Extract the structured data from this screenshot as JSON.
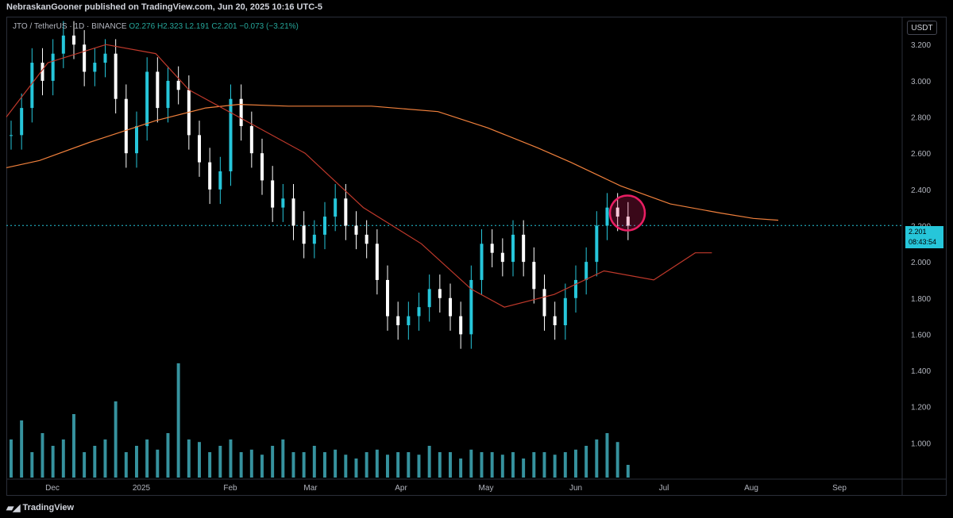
{
  "header": {
    "publisher": "NebraskanGooner published on TradingView.com, Jun 20, 2025 10:16 UTC-5"
  },
  "legend": {
    "symbol": "JTO / TetherUS · 1D · BINANCE",
    "open": "O2.276",
    "high": "H2.323",
    "low": "L2.191",
    "close": "C2.201",
    "change": "−0.073 (−3.21%)"
  },
  "currency": "USDT",
  "last_price": {
    "value": "2.201",
    "countdown": "08:43:54"
  },
  "footer": {
    "brand": "TradingView"
  },
  "colors": {
    "up": "#26c6da",
    "down": "#ffffff",
    "ma_long": "#f0803c",
    "ma_short_red": "#c0392b",
    "ma_short_green": "#2e7d32",
    "highlight": "#e91e63",
    "volume": "#4dd0e1"
  },
  "chart_data": {
    "type": "candlestick",
    "y_axis": {
      "min": 0.8,
      "max": 3.35,
      "ticks": [
        "3.200",
        "3.000",
        "2.800",
        "2.600",
        "2.400",
        "2.200",
        "2.000",
        "1.800",
        "1.600",
        "1.400",
        "1.200",
        "1.000"
      ]
    },
    "x_axis": {
      "labels": [
        "Dec",
        "2025",
        "Feb",
        "Mar",
        "Apr",
        "May",
        "Jun",
        "Jul",
        "Aug",
        "Sep"
      ]
    },
    "ma_long_points": [
      [
        2.52,
        0
      ],
      [
        2.56,
        0.04
      ],
      [
        2.66,
        0.1
      ],
      [
        2.78,
        0.18
      ],
      [
        2.85,
        0.24
      ],
      [
        2.87,
        0.28
      ],
      [
        2.86,
        0.34
      ],
      [
        2.86,
        0.44
      ],
      [
        2.83,
        0.52
      ],
      [
        2.74,
        0.58
      ],
      [
        2.63,
        0.64
      ],
      [
        2.55,
        0.68
      ],
      [
        2.42,
        0.74
      ],
      [
        2.32,
        0.8
      ],
      [
        2.27,
        0.86
      ],
      [
        2.24,
        0.9
      ],
      [
        2.23,
        0.93
      ]
    ],
    "ma_short_points": [
      [
        2.8,
        0
      ],
      [
        3.1,
        0.05
      ],
      [
        3.2,
        0.12
      ],
      [
        3.15,
        0.18
      ],
      [
        2.95,
        0.22
      ],
      [
        2.75,
        0.3
      ],
      [
        2.6,
        0.36
      ],
      [
        2.3,
        0.43
      ],
      [
        2.1,
        0.5
      ],
      [
        1.85,
        0.56
      ],
      [
        1.75,
        0.6
      ],
      [
        1.82,
        0.66
      ],
      [
        1.95,
        0.72
      ],
      [
        1.9,
        0.78
      ],
      [
        2.05,
        0.83
      ],
      [
        2.05,
        0.85
      ]
    ],
    "candles": [
      2.7,
      2.85,
      3.1,
      3.0,
      3.15,
      3.25,
      3.2,
      3.05,
      3.1,
      3.15,
      2.9,
      2.6,
      2.75,
      3.05,
      2.85,
      3.0,
      2.95,
      2.7,
      2.55,
      2.4,
      2.5,
      2.9,
      2.75,
      2.6,
      2.45,
      2.3,
      2.35,
      2.2,
      2.1,
      2.15,
      2.25,
      2.35,
      2.2,
      2.15,
      2.1,
      1.9,
      1.7,
      1.65,
      1.7,
      1.75,
      1.85,
      1.8,
      1.7,
      1.6,
      1.9,
      2.1,
      2.05,
      2.0,
      2.15,
      2.0,
      1.85,
      1.7,
      1.65,
      1.8,
      1.9,
      2.0,
      2.2,
      2.3,
      2.25,
      2.2
    ],
    "volume": [
      0.3,
      0.45,
      0.2,
      0.35,
      0.25,
      0.3,
      0.5,
      0.2,
      0.25,
      0.3,
      0.6,
      0.2,
      0.25,
      0.3,
      0.22,
      0.35,
      0.9,
      0.3,
      0.28,
      0.2,
      0.25,
      0.3,
      0.2,
      0.22,
      0.18,
      0.25,
      0.3,
      0.2,
      0.2,
      0.25,
      0.2,
      0.22,
      0.18,
      0.15,
      0.2,
      0.22,
      0.18,
      0.2,
      0.2,
      0.18,
      0.25,
      0.2,
      0.2,
      0.15,
      0.22,
      0.2,
      0.2,
      0.18,
      0.2,
      0.15,
      0.2,
      0.2,
      0.18,
      0.2,
      0.22,
      0.25,
      0.3,
      0.35,
      0.28,
      0.1
    ]
  }
}
